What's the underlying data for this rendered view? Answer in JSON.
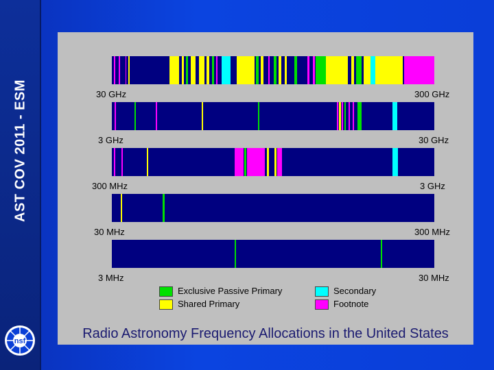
{
  "sidebar": {
    "title": "AST COV 2011 - ESM",
    "logo_text": "nsf"
  },
  "strips": [
    {
      "low": "30 GHz",
      "high": "300 GHz"
    },
    {
      "low": "3 GHz",
      "high": "30 GHz"
    },
    {
      "low": "300 MHz",
      "high": "3 GHz"
    },
    {
      "low": "30 MHz",
      "high": "300 MHz"
    },
    {
      "low": "3 MHz",
      "high": "30 MHz"
    }
  ],
  "legend": [
    {
      "label": "Exclusive Passive Primary",
      "color": "#00e000"
    },
    {
      "label": "Shared Primary",
      "color": "#ffff00"
    },
    {
      "label": "Secondary",
      "color": "#00ffff"
    },
    {
      "label": "Footnote",
      "color": "#ff00ff"
    }
  ],
  "colors": {
    "background": "#000080",
    "exclusive": "#00e000",
    "shared": "#ffff00",
    "secondary": "#00ffff",
    "footnote": "#ff00ff"
  },
  "caption": "Radio Astronomy Frequency Allocations in the United States"
}
